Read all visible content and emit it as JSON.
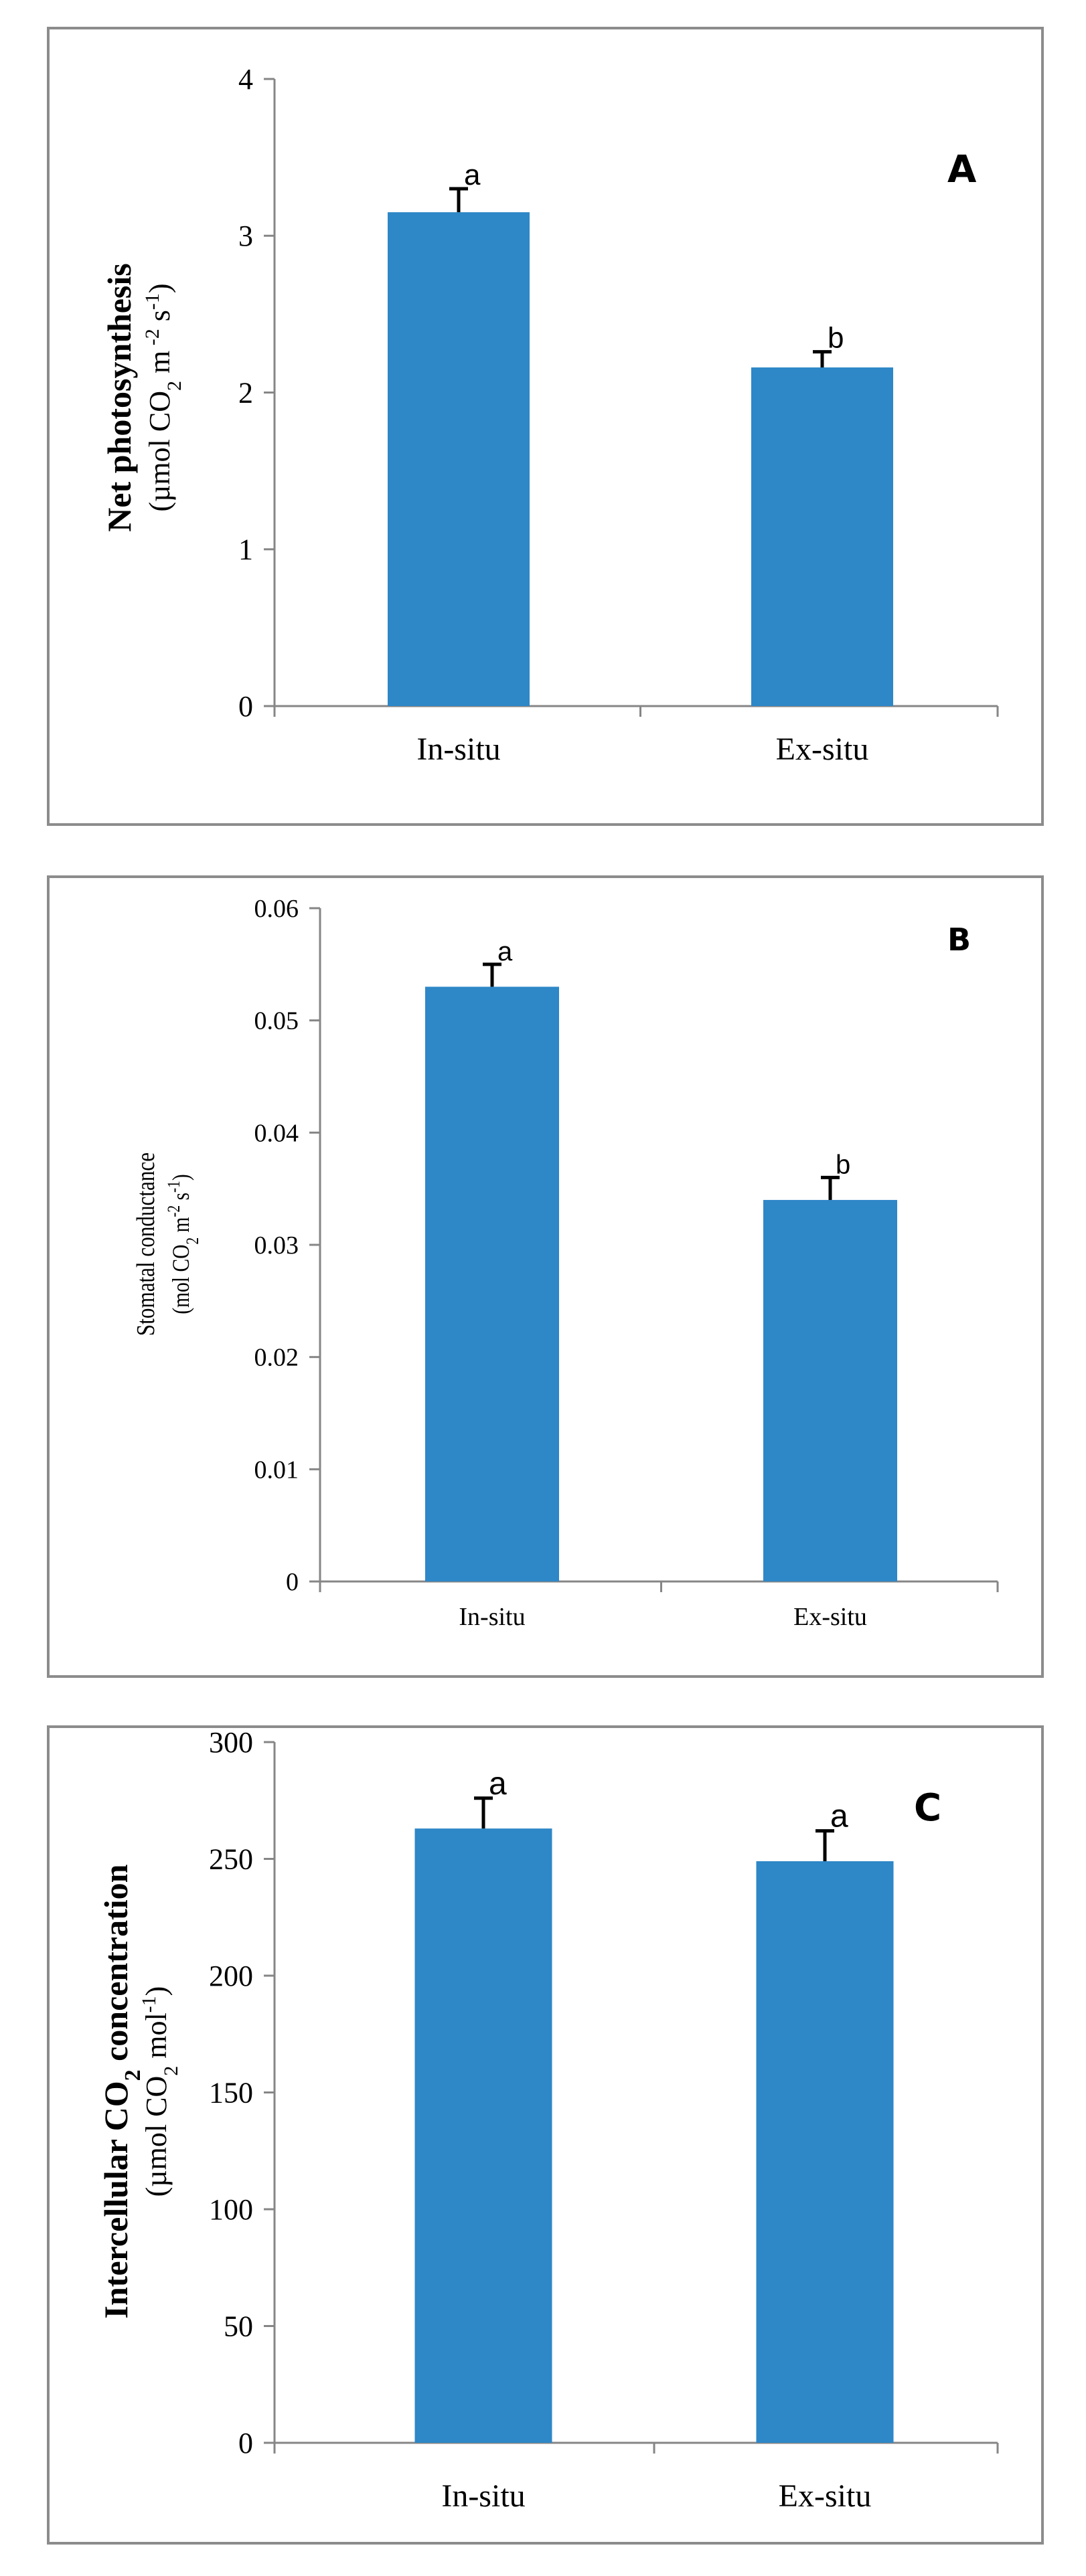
{
  "chart_data": [
    {
      "type": "bar",
      "panel_label": "A",
      "title": "",
      "xlabel": "",
      "ylabel_main": "Net photosynthesis",
      "ylabel_parts": [
        "(µmol CO",
        "2",
        " m",
        " -2",
        " s",
        "-1",
        ")"
      ],
      "categories": [
        "In-situ",
        "Ex-situ"
      ],
      "values": [
        3.15,
        2.16
      ],
      "errors": [
        0.15,
        0.1
      ],
      "significance": [
        "a",
        "b"
      ],
      "ylim": [
        0,
        4
      ],
      "yticks": [
        "0",
        "1",
        "2",
        "3",
        "4"
      ],
      "bar_color": "#2e87c7"
    },
    {
      "type": "bar",
      "panel_label": "B",
      "title": "",
      "xlabel": "",
      "ylabel_main": "Stomatal conductance",
      "ylabel_parts": [
        "(mol CO",
        "2",
        " m",
        "-2",
        " s",
        "-1",
        ")"
      ],
      "categories": [
        "In-situ",
        "Ex-situ"
      ],
      "values": [
        0.053,
        0.034
      ],
      "errors": [
        0.002,
        0.002
      ],
      "significance": [
        "a",
        "b"
      ],
      "ylim": [
        0,
        0.06
      ],
      "yticks": [
        "0",
        "0.01",
        "0.02",
        "0.03",
        "0.04",
        "0.05",
        "0.06"
      ],
      "bar_color": "#2e87c7"
    },
    {
      "type": "bar",
      "panel_label": "C",
      "title": "",
      "xlabel": "",
      "ylabel_main_parts": [
        "Intercellular CO",
        "2",
        " concentration"
      ],
      "ylabel_parts": [
        "(µmol CO",
        "2",
        " mol",
        "-1",
        ")"
      ],
      "categories": [
        "In-situ",
        "Ex-situ"
      ],
      "values": [
        263,
        249
      ],
      "errors": [
        13,
        13
      ],
      "significance": [
        "a",
        "a"
      ],
      "ylim": [
        0,
        300
      ],
      "yticks": [
        "0",
        "50",
        "100",
        "150",
        "200",
        "250",
        "300"
      ],
      "bar_color": "#2e87c7"
    }
  ]
}
